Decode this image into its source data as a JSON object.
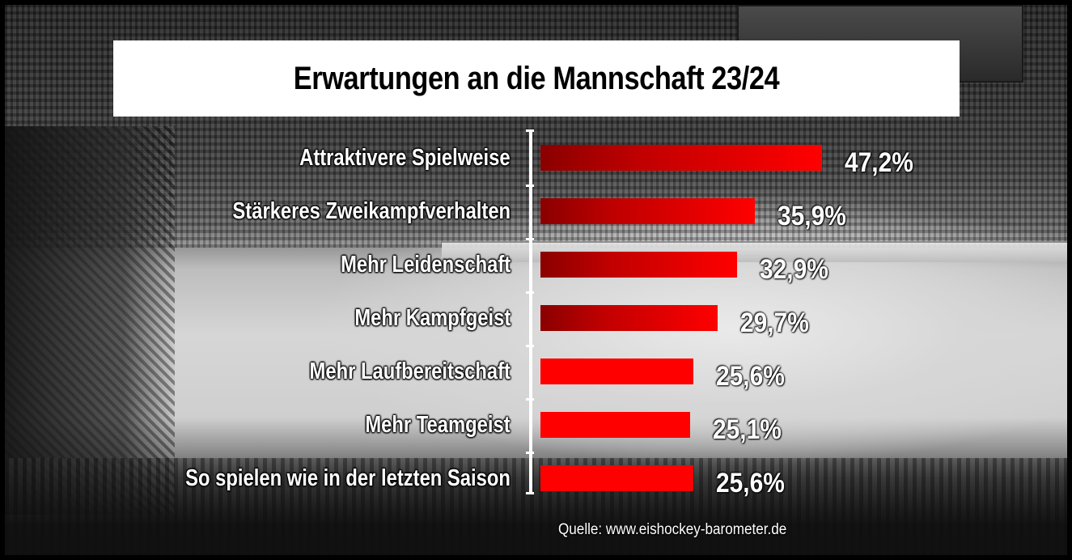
{
  "title": "Erwartungen an die Mannschaft 23/24",
  "source": "Quelle: www.eishockey-barometer.de",
  "colors": {
    "bar_primary": "#ff0000",
    "bar_gradient_start": "#8a0000",
    "title_background": "#ffffff",
    "label_text": "#ffffff"
  },
  "chart_data": {
    "type": "bar",
    "orientation": "horizontal",
    "categories": [
      "Attraktivere Spielweise",
      "Stärkeres Zweikampfverhalten",
      "Mehr Leidenschaft",
      "Mehr Kampfgeist",
      "Mehr Laufbereitschaft",
      "Mehr Teamgeist",
      "So spielen wie in der letzten Saison"
    ],
    "values": [
      47.2,
      35.9,
      32.9,
      29.7,
      25.6,
      25.1,
      25.6
    ],
    "value_labels": [
      "47,2%",
      "35,9%",
      "32,9%",
      "29,7%",
      "25,6%",
      "25,1%",
      "25,6%"
    ],
    "bar_style": [
      "gradient",
      "gradient",
      "gradient",
      "gradient",
      "flat",
      "flat",
      "flat"
    ],
    "title": "Erwartungen an die Mannschaft 23/24",
    "xlabel": "",
    "ylabel": "",
    "grid": false,
    "legend": "none"
  }
}
